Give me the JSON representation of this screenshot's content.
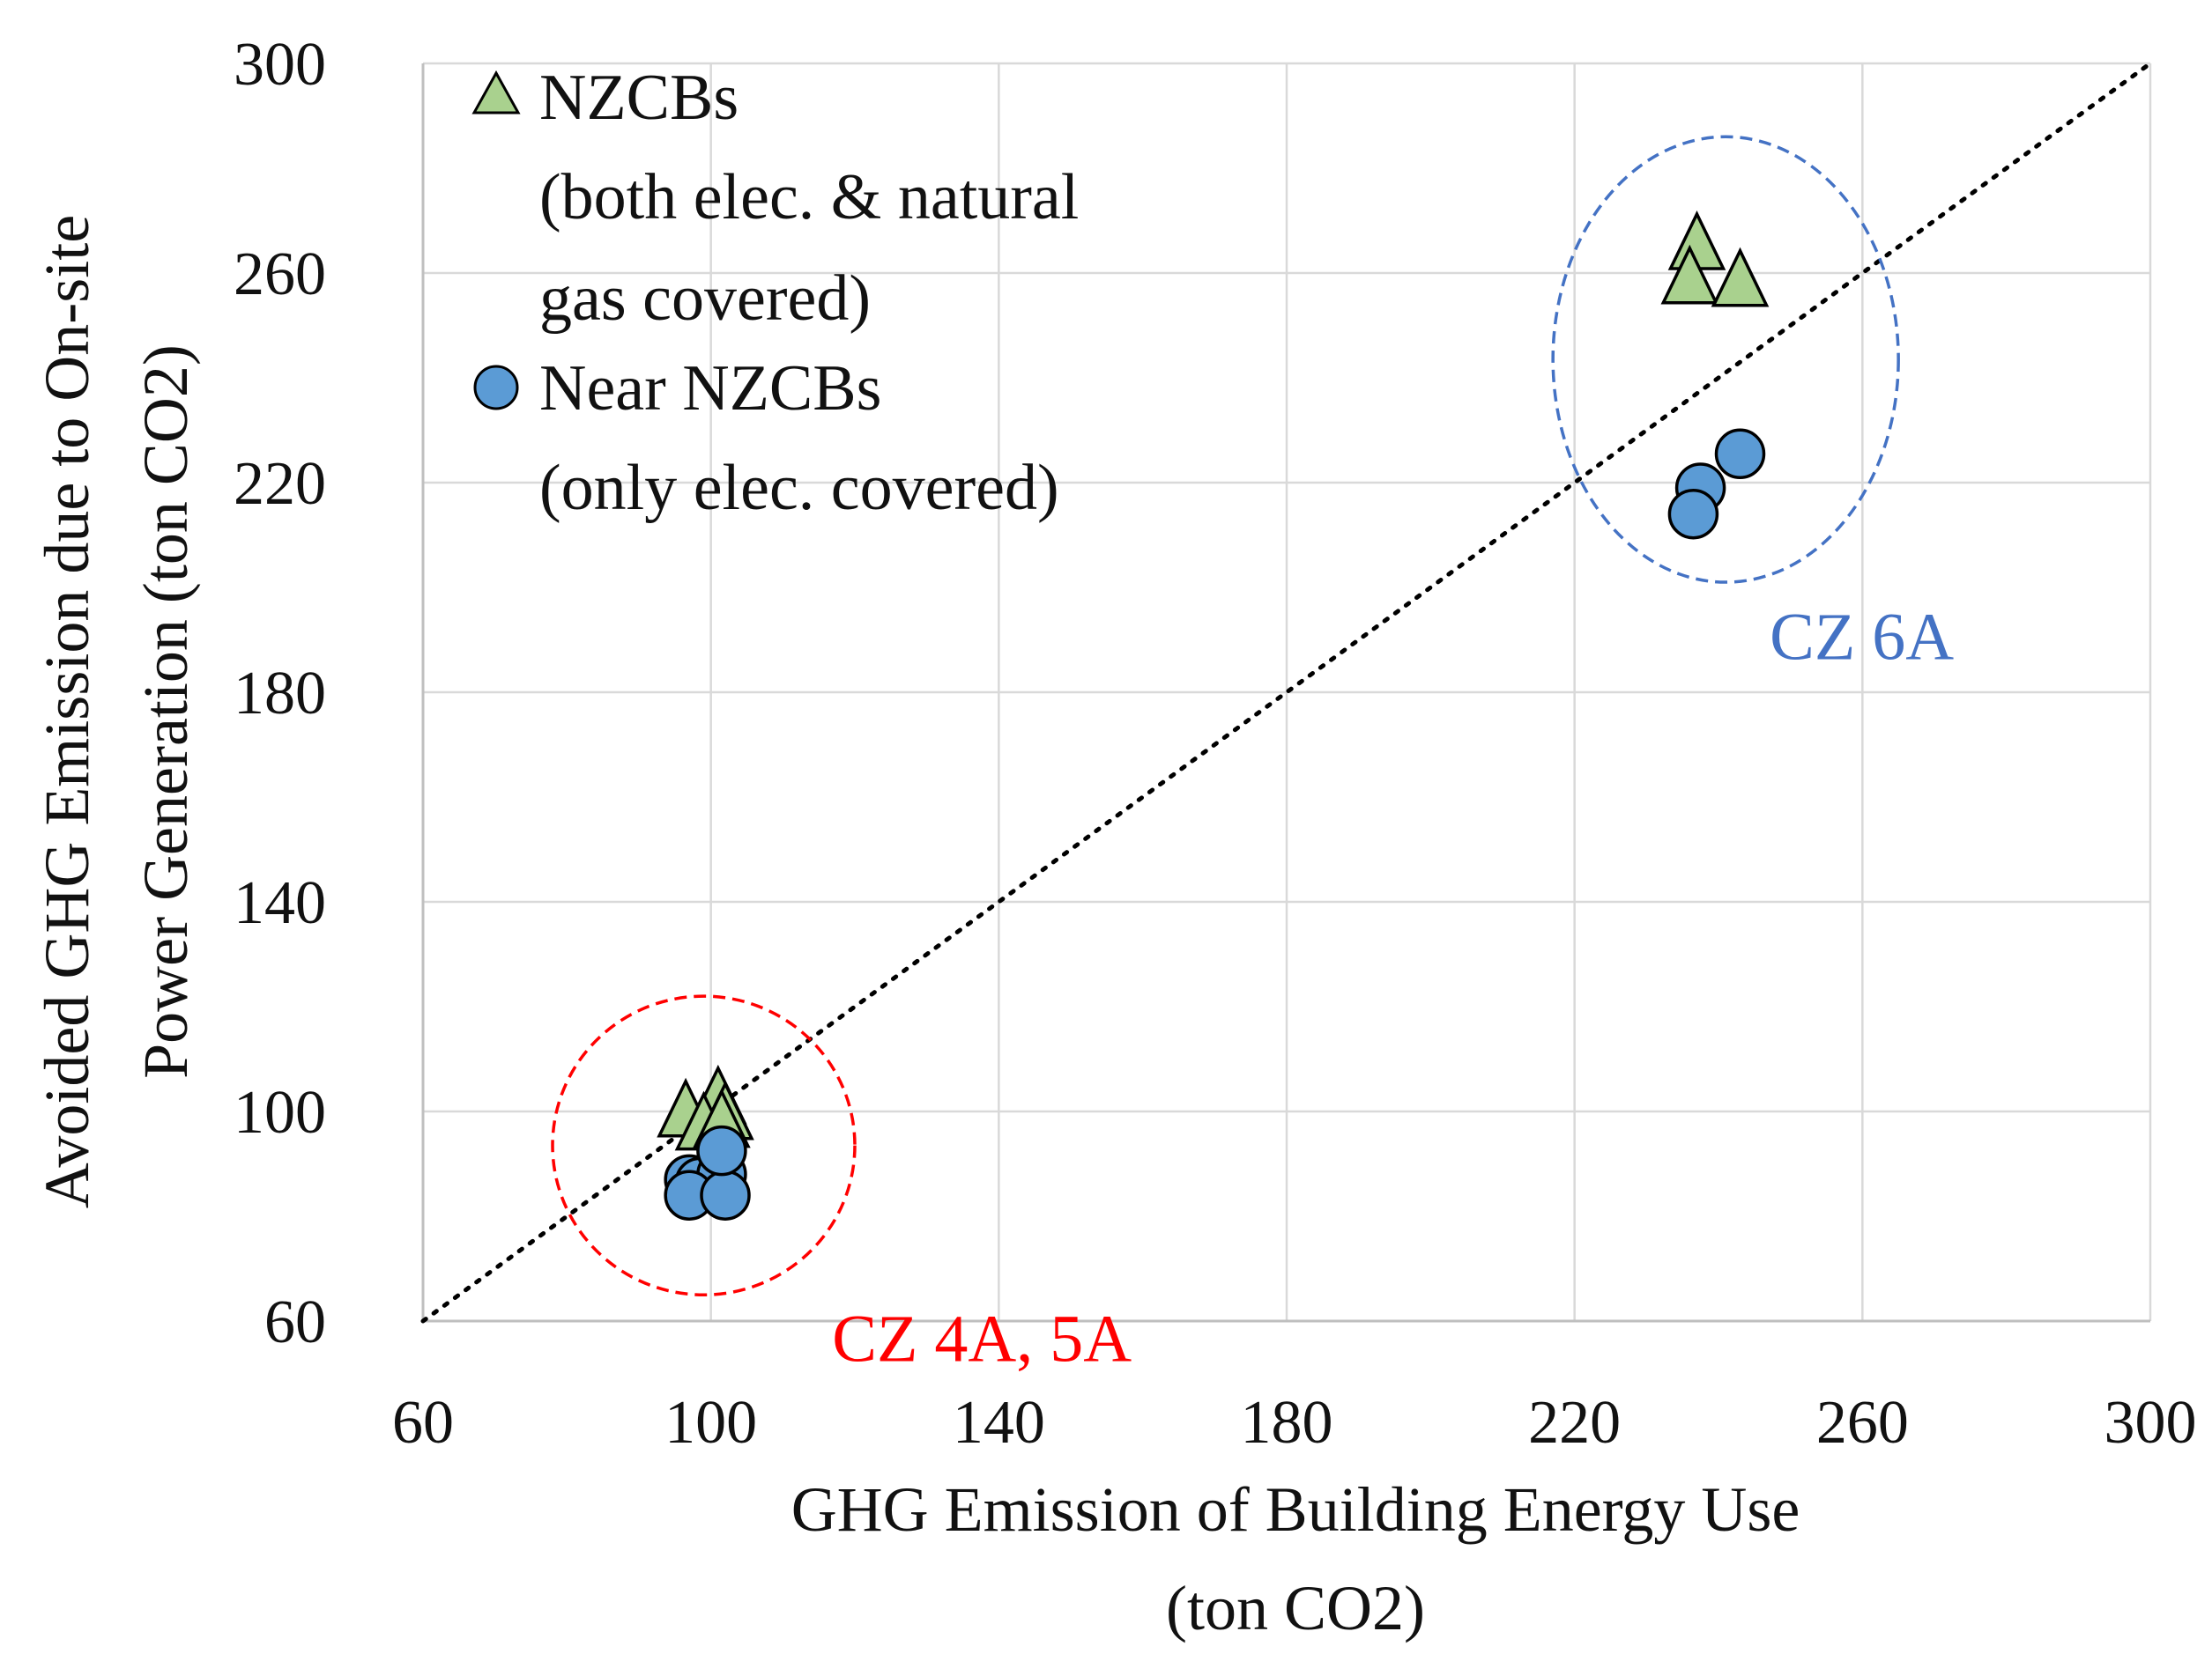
{
  "chart_data": {
    "type": "scatter",
    "title": "",
    "xlabel_lines": [
      "GHG Emission of Building Energy Use",
      "(ton CO2)"
    ],
    "ylabel_lines": [
      "Avoided GHG Emission due to On-site",
      "Power Generation (ton CO2)"
    ],
    "xlim": [
      60,
      300
    ],
    "ylim": [
      60,
      300
    ],
    "x_ticks": [
      60,
      100,
      140,
      180,
      220,
      260,
      300
    ],
    "y_ticks": [
      60,
      100,
      140,
      180,
      220,
      260,
      300
    ],
    "x_tick_labels": [
      "60",
      "100",
      "140",
      "180",
      "220",
      "260",
      "300"
    ],
    "y_tick_labels": [
      "60",
      "100",
      "140",
      "180",
      "220",
      "260",
      "300"
    ],
    "grid": true,
    "reference_line": {
      "type": "diagonal",
      "from": [
        60,
        60
      ],
      "to": [
        300,
        300
      ],
      "style": "dotted"
    },
    "series": [
      {
        "name": "NZCBs",
        "legend_lines": [
          "NZCBs",
          "(both elec. & natural",
          "gas covered)"
        ],
        "marker": "triangle",
        "color": "#a9d18e",
        "points": [
          {
            "x": 96.5,
            "y": 99.5
          },
          {
            "x": 101,
            "y": 102
          },
          {
            "x": 102,
            "y": 99
          },
          {
            "x": 99,
            "y": 97
          },
          {
            "x": 101.5,
            "y": 97.5
          },
          {
            "x": 237,
            "y": 265
          },
          {
            "x": 236,
            "y": 258.5
          },
          {
            "x": 243,
            "y": 258
          }
        ]
      },
      {
        "name": "Near NZCBs",
        "legend_lines": [
          "Near NZCBs",
          "(only elec. covered)"
        ],
        "marker": "circle",
        "color": "#5b9bd5",
        "points": [
          {
            "x": 97,
            "y": 87
          },
          {
            "x": 98.5,
            "y": 86.5
          },
          {
            "x": 101.5,
            "y": 88
          },
          {
            "x": 97,
            "y": 84
          },
          {
            "x": 102,
            "y": 84
          },
          {
            "x": 101.5,
            "y": 92.5
          },
          {
            "x": 243,
            "y": 225.5
          },
          {
            "x": 237.5,
            "y": 219
          },
          {
            "x": 236.5,
            "y": 214
          }
        ]
      }
    ],
    "annotations": [
      {
        "label": "CZ 4A, 5A",
        "color": "#ff0000",
        "ellipse": {
          "cx": 99,
          "cy": 93.5,
          "rx": 21,
          "ry": 28.5
        }
      },
      {
        "label": "CZ 6A",
        "color": "#4472c4",
        "ellipse": {
          "cx": 241,
          "cy": 243.5,
          "rx": 24,
          "ry": 42.5
        }
      }
    ]
  }
}
